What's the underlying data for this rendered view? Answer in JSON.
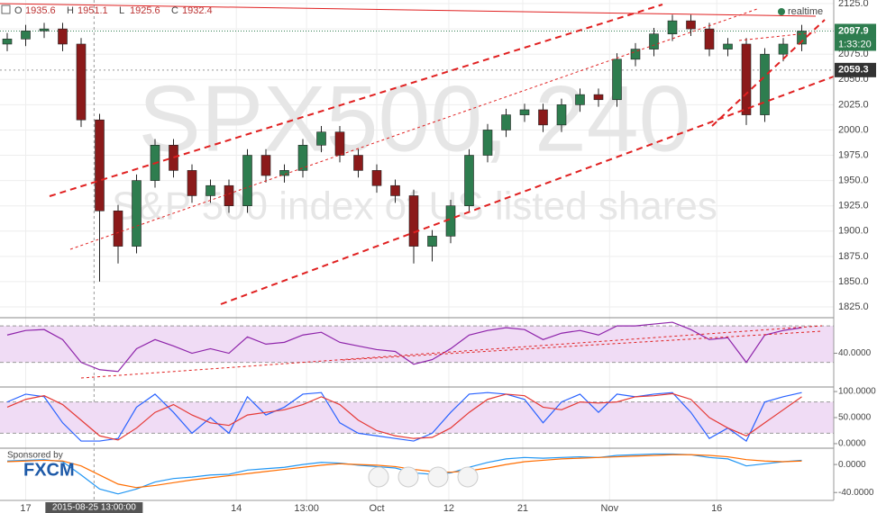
{
  "chart_data": {
    "type": "candlestick",
    "title": "SPX500, 240",
    "subtitle": "S&P 500 index of US listed shares",
    "ohlc_header": {
      "labels": [
        "O",
        "H",
        "L",
        "C"
      ],
      "values": [
        1935.6,
        1951.1,
        1925.6,
        1932.4
      ]
    },
    "open": [
      2085,
      2090,
      2098,
      2100,
      2085,
      2010,
      1920,
      1885,
      1950,
      1985,
      1960,
      1935,
      1945,
      1925,
      1975,
      1955,
      1960,
      1985,
      1998,
      1975,
      1960,
      1945,
      1935,
      1885,
      1895,
      1925,
      1975,
      2000,
      2015,
      2020,
      2005,
      2025,
      2035,
      2030,
      2070,
      2080,
      2095,
      2108,
      2100,
      2080,
      2085,
      2015,
      2075,
      2085
    ],
    "high": [
      2096,
      2104,
      2106,
      2106,
      2091,
      2016,
      1926,
      1956,
      1991,
      1991,
      1966,
      1951,
      1951,
      1981,
      1981,
      1966,
      1991,
      2004,
      2004,
      1981,
      1966,
      1951,
      1941,
      1901,
      1931,
      1981,
      2006,
      2021,
      2026,
      2026,
      2031,
      2041,
      2041,
      2076,
      2086,
      2101,
      2114,
      2114,
      2106,
      2091,
      2091,
      2081,
      2091,
      2104
    ],
    "low": [
      2078,
      2083,
      2091,
      2078,
      2003,
      1850,
      1868,
      1878,
      1943,
      1953,
      1928,
      1928,
      1918,
      1918,
      1948,
      1948,
      1953,
      1978,
      1968,
      1953,
      1938,
      1928,
      1868,
      1870,
      1888,
      1918,
      1968,
      1993,
      2008,
      1998,
      1998,
      2018,
      2023,
      2023,
      2063,
      2073,
      2088,
      2093,
      2073,
      2073,
      2005,
      2008,
      2068,
      2078
    ],
    "close": [
      2090,
      2098,
      2100,
      2085,
      2010,
      1920,
      1885,
      1950,
      1985,
      1960,
      1935,
      1945,
      1925,
      1975,
      1955,
      1960,
      1985,
      1998,
      1975,
      1960,
      1945,
      1935,
      1885,
      1895,
      1925,
      1975,
      2000,
      2015,
      2020,
      2005,
      2025,
      2035,
      2030,
      2070,
      2080,
      2095,
      2108,
      2100,
      2080,
      2085,
      2015,
      2075,
      2085,
      2097.9
    ],
    "up_color": "#2e7d4f",
    "down_color": "#8b1a1a",
    "ylim": [
      1817,
      2128.6
    ],
    "yticks": [
      {
        "value": 1825,
        "label": "1825.0"
      },
      {
        "value": 1850,
        "label": "1850.0"
      },
      {
        "value": 1875,
        "label": "1875.0"
      },
      {
        "value": 1900,
        "label": "1900.0"
      },
      {
        "value": 1925,
        "label": "1925.0"
      },
      {
        "value": 1950,
        "label": "1950.0"
      },
      {
        "value": 1975,
        "label": "1975.0"
      },
      {
        "value": 2000,
        "label": "2000.0"
      },
      {
        "value": 2025,
        "label": "2025.0"
      },
      {
        "value": 2050,
        "label": "2050.0"
      },
      {
        "value": 2075,
        "label": "2075.0"
      },
      {
        "value": 2100,
        "label": "2100.0"
      },
      {
        "value": 2125,
        "label": "2125.0"
      }
    ],
    "xticks": [
      {
        "value": 1,
        "label": "17"
      },
      {
        "value": 12.4,
        "label": "14"
      },
      {
        "value": 16.2,
        "label": "13:00"
      },
      {
        "value": 20,
        "label": "Oct"
      },
      {
        "value": 23.9,
        "label": "12"
      },
      {
        "value": 27.9,
        "label": "21"
      },
      {
        "value": 32.6,
        "label": "Nov"
      },
      {
        "value": 38.4,
        "label": "16"
      }
    ],
    "crosshair": {
      "value": 4.7,
      "label": "2015-08-25 13:00:00"
    },
    "last_price": 2097.9,
    "countdown": "1:33:20",
    "marked_price": 2059.3,
    "realtime": "realtime",
    "sponsor": "Sponsored by",
    "sponsor_name": "FXCM",
    "rsi": {
      "values": [
        60,
        65,
        66,
        55,
        30,
        22,
        20,
        45,
        55,
        48,
        40,
        45,
        40,
        58,
        50,
        52,
        60,
        63,
        52,
        48,
        44,
        42,
        28,
        33,
        45,
        60,
        65,
        68,
        66,
        55,
        62,
        65,
        60,
        70,
        70,
        72,
        74,
        66,
        55,
        57,
        30,
        60,
        65,
        68
      ],
      "color": "#8e24aa",
      "ylim": [
        5,
        78
      ],
      "yticks": [
        {
          "value": 40,
          "label": "40.0000"
        }
      ],
      "bands": [
        30,
        70
      ]
    },
    "stochastic": {
      "k": [
        80,
        95,
        90,
        40,
        5,
        5,
        10,
        70,
        95,
        60,
        20,
        50,
        20,
        90,
        55,
        70,
        95,
        98,
        40,
        20,
        15,
        10,
        5,
        20,
        60,
        95,
        98,
        95,
        85,
        40,
        80,
        95,
        60,
        95,
        90,
        95,
        98,
        60,
        10,
        30,
        5,
        80,
        90,
        98
      ],
      "d": [
        70,
        85,
        92,
        75,
        45,
        15,
        7,
        30,
        60,
        75,
        55,
        40,
        35,
        55,
        60,
        65,
        75,
        90,
        75,
        45,
        25,
        15,
        10,
        12,
        30,
        60,
        85,
        95,
        92,
        70,
        65,
        80,
        78,
        80,
        90,
        92,
        96,
        85,
        50,
        30,
        15,
        40,
        65,
        90
      ],
      "k_color": "#2962ff",
      "d_color": "#e53935",
      "ylim": [
        -7,
        107
      ],
      "yticks": [
        {
          "value": 0,
          "label": "0.0000"
        },
        {
          "value": 50,
          "label": "50.0000"
        },
        {
          "value": 100,
          "label": "100.0000"
        }
      ],
      "bands": [
        20,
        80
      ]
    },
    "macd": {
      "macd": [
        5,
        6,
        7,
        4,
        -15,
        -35,
        -42,
        -35,
        -25,
        -20,
        -18,
        -15,
        -14,
        -8,
        -6,
        -4,
        0,
        3,
        2,
        -1,
        -3,
        -5,
        -12,
        -14,
        -12,
        -4,
        3,
        8,
        10,
        9,
        10,
        11,
        10,
        13,
        14,
        15,
        15,
        14,
        10,
        8,
        -2,
        1,
        4,
        6
      ],
      "signal": [
        4,
        5,
        6,
        5,
        -2,
        -15,
        -28,
        -33,
        -30,
        -26,
        -22,
        -19,
        -16,
        -13,
        -10,
        -7,
        -4,
        -1,
        1,
        0,
        -1,
        -3,
        -7,
        -10,
        -11,
        -9,
        -5,
        0,
        4,
        6,
        8,
        9,
        10,
        11,
        12,
        13,
        14,
        14,
        13,
        11,
        7,
        5,
        4,
        5
      ],
      "macd_color": "#2196f3",
      "signal_color": "#ff6d00",
      "ylim": [
        -50,
        22
      ],
      "yticks": [
        {
          "value": 0,
          "label": "0.0000"
        },
        {
          "value": -40,
          "label": "-40.0000"
        }
      ]
    }
  }
}
